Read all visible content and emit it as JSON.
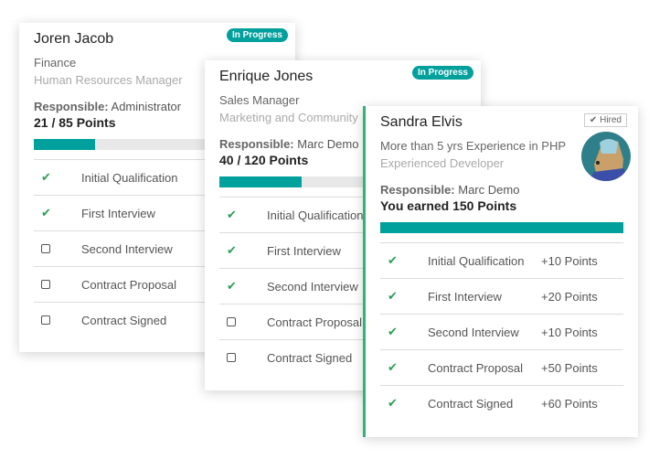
{
  "colors": {
    "accent": "#00a09d",
    "check": "#2a9d55",
    "hired_border": "#2bb673"
  },
  "cards": [
    {
      "name": "Joren Jacob",
      "line1": "Finance",
      "line2": "Human Resources Manager",
      "responsible_label": "Responsible:",
      "responsible": "Administrator",
      "points": "21 / 85 Points",
      "progress": 0.247,
      "badge": "In Progress",
      "stages": [
        {
          "label": "Initial Qualification",
          "done": true
        },
        {
          "label": "First Interview",
          "done": true
        },
        {
          "label": "Second Interview",
          "done": false
        },
        {
          "label": "Contract Proposal",
          "done": false
        },
        {
          "label": "Contract Signed",
          "done": false
        }
      ]
    },
    {
      "name": "Enrique Jones",
      "line1": "Sales Manager",
      "line2": "Marketing and Community",
      "responsible_label": "Responsible:",
      "responsible": "Marc Demo",
      "points": "40 / 120 Points",
      "progress": 0.333,
      "badge": "In Progress",
      "stages": [
        {
          "label": "Initial Qualification",
          "done": true
        },
        {
          "label": "First Interview",
          "done": true
        },
        {
          "label": "Second Interview",
          "done": true
        },
        {
          "label": "Contract Proposal",
          "done": false
        },
        {
          "label": "Contract Signed",
          "done": false
        }
      ]
    },
    {
      "name": "Sandra Elvis",
      "line1": "More than 5 yrs Experience in PHP",
      "line2": "Experienced Developer",
      "responsible_label": "Responsible:",
      "responsible": "Marc Demo",
      "points": "You earned 150 Points",
      "progress": 1.0,
      "badge": "Hired",
      "avatar_icon": "dog-avatar",
      "stages": [
        {
          "label": "Initial Qualification",
          "done": true,
          "points": "+10 Points"
        },
        {
          "label": "First Interview",
          "done": true,
          "points": "+20 Points"
        },
        {
          "label": "Second Interview",
          "done": true,
          "points": "+10 Points"
        },
        {
          "label": "Contract Proposal",
          "done": true,
          "points": "+50 Points"
        },
        {
          "label": "Contract Signed",
          "done": true,
          "points": "+60 Points"
        }
      ]
    }
  ]
}
